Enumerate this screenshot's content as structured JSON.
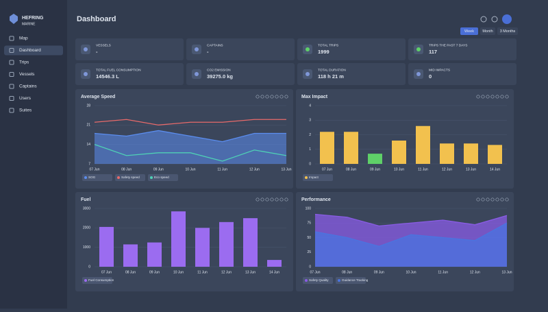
{
  "brand": {
    "name": "HEFRING",
    "sub": "MARINE"
  },
  "nav": [
    "Map",
    "Dashboard",
    "Trips",
    "Vessels",
    "Captains",
    "Users",
    "Suites"
  ],
  "page_title": "Dashboard",
  "periods": [
    "Week",
    "Month",
    "3 Months"
  ],
  "stats": [
    {
      "label": "VESSELS",
      "value": "-"
    },
    {
      "label": "CAPTAINS",
      "value": "-"
    },
    {
      "label": "TOTAL TRIPS",
      "value": "1999"
    },
    {
      "label": "TRIPS THE PAST 7 DAYS",
      "value": "117"
    },
    {
      "label": "TOTAL FUEL CONSUMPTION",
      "value": "14546.3 L"
    },
    {
      "label": "CO2 EMISSION",
      "value": "39275.0 kg"
    },
    {
      "label": "TOTAL DURATION",
      "value": "118 h 21 m"
    },
    {
      "label": "MID IMPACTS",
      "value": "0"
    }
  ],
  "chart_data": [
    {
      "type": "line",
      "title": "Average Speed",
      "categories": [
        "07 Jun",
        "08 Jun",
        "09 Jun",
        "10 Jun",
        "11 Jun",
        "12 Jun",
        "13 Jun"
      ],
      "ylim": [
        7,
        28
      ],
      "yticks": [
        7,
        14,
        21,
        28
      ],
      "series": [
        {
          "name": "SOG",
          "color": "#5b8def",
          "area": true,
          "values": [
            18,
            17,
            19,
            17,
            15,
            18,
            18
          ]
        },
        {
          "name": "Safety speed",
          "color": "#e86a6a",
          "values": [
            22,
            23,
            21,
            22,
            22,
            23,
            23
          ]
        },
        {
          "name": "Eco speed",
          "color": "#4fd1b5",
          "values": [
            14,
            10,
            11,
            11,
            8,
            12,
            10
          ]
        }
      ]
    },
    {
      "type": "bar",
      "title": "Max Impact",
      "categories": [
        "07 Jun",
        "08 Jun",
        "09 Jun",
        "10 Jun",
        "11 Jun",
        "12 Jun",
        "13 Jun",
        "14 Jun"
      ],
      "ylim": [
        0,
        4
      ],
      "yticks": [
        0,
        1,
        2,
        3,
        4
      ],
      "series": [
        {
          "name": "Impact",
          "color": "#f2c14e",
          "values": [
            2.2,
            2.2,
            0.7,
            1.6,
            2.6,
            1.4,
            1.4,
            1.3
          ],
          "colors": [
            "#f2c14e",
            "#f2c14e",
            "#5fd068",
            "#f2c14e",
            "#f2c14e",
            "#f2c14e",
            "#f2c14e",
            "#f2c14e"
          ]
        }
      ]
    },
    {
      "type": "bar",
      "title": "Fuel",
      "categories": [
        "07 Jun",
        "08 Jun",
        "09 Jun",
        "10 Jun",
        "11 Jun",
        "12 Jun",
        "13 Jun",
        "14 Jun"
      ],
      "ylim": [
        0,
        3000
      ],
      "yticks": [
        0,
        1000,
        2000,
        3000
      ],
      "series": [
        {
          "name": "Fuel Consumption",
          "color": "#9b6cf0",
          "values": [
            2050,
            1150,
            1250,
            2850,
            2000,
            2300,
            2500,
            350
          ]
        }
      ]
    },
    {
      "type": "area",
      "title": "Performance",
      "categories": [
        "07 Jun",
        "08 Jun",
        "09 Jun",
        "10 Jun",
        "11 Jun",
        "12 Jun",
        "13 Jun"
      ],
      "ylim": [
        0,
        100
      ],
      "yticks": [
        0,
        25,
        50,
        75,
        100
      ],
      "series": [
        {
          "name": "Safety Quality",
          "color": "#8a5ce6",
          "values": [
            90,
            85,
            70,
            75,
            80,
            72,
            88
          ]
        },
        {
          "name": "Guidance Tracking",
          "color": "#4a74e0",
          "values": [
            60,
            50,
            35,
            55,
            50,
            45,
            75
          ]
        }
      ]
    }
  ]
}
